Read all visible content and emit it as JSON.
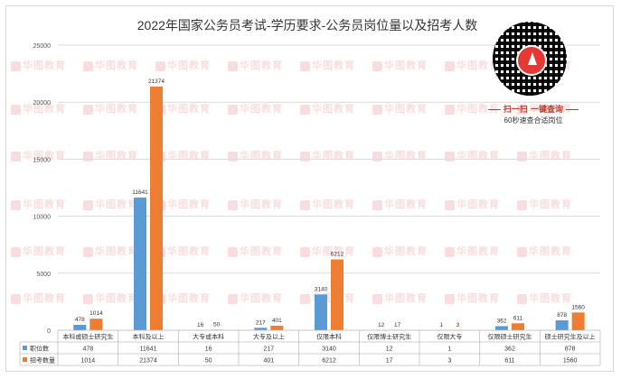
{
  "chart_data": {
    "type": "bar",
    "title": "2022年国家公务员考试-学历要求-公务员岗位量以及招考人数",
    "categories": [
      "本科或硕士研究生",
      "本科及以上",
      "大专或本科",
      "大专及以上",
      "仅限本科",
      "仅限博士研究生",
      "仅限大专",
      "仅限硕士研究生",
      "硕士研究生及以上"
    ],
    "series": [
      {
        "name": "职位数",
        "color": "#5b9bd5",
        "values": [
          478,
          11641,
          16,
          217,
          3140,
          12,
          1,
          362,
          878
        ]
      },
      {
        "name": "招考数量",
        "color": "#ed7d31",
        "values": [
          1014,
          21374,
          50,
          401,
          6212,
          17,
          3,
          611,
          1560
        ]
      }
    ],
    "ylim": [
      0,
      25000
    ],
    "yticks": [
      0,
      5000,
      10000,
      15000,
      20000,
      25000
    ],
    "xlabel": "",
    "ylabel": "",
    "grid": true,
    "legend": "data-table"
  },
  "qr": {
    "slogan": "扫一扫 一键查询",
    "sub": "60秒速查合适岗位"
  },
  "watermark": {
    "text": "华图教育"
  }
}
